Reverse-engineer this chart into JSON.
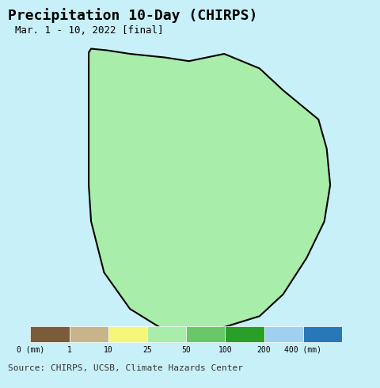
{
  "title": "Precipitation 10-Day (CHIRPS)",
  "subtitle": "Mar. 1 - 10, 2022 [final]",
  "source_text": "Source: CHIRPS, UCSB, Climate Hazards Center",
  "background_color": "#c8f0f8",
  "legend_colors": [
    "#7a5c3a",
    "#c8b48a",
    "#f5f57a",
    "#a8edaa",
    "#68c868",
    "#28a028",
    "#a0d0f0",
    "#2878b8"
  ],
  "legend_labels": [
    "0 (mm)",
    "1",
    "10",
    "25",
    "50",
    "100",
    "200",
    "400 (mm)"
  ],
  "title_fontsize": 13,
  "subtitle_fontsize": 9,
  "source_fontsize": 8,
  "map_extent": [
    79.5,
    82.0,
    5.8,
    9.9
  ],
  "figsize": [
    4.8,
    4.9
  ],
  "dpi": 100,
  "colorbar_bounds": [
    0,
    1,
    10,
    25,
    50,
    100,
    200,
    400
  ],
  "precipitation_colors": {
    "0_1": "#7a5c3a",
    "1_10": "#c8b48a",
    "10_25": "#f5f57a",
    "25_50": "#a8edaa",
    "50_100": "#68c868",
    "100_200": "#28a028",
    "200_400": "#a0d0f0",
    "400plus": "#2878b8"
  },
  "sea_color": "#c8f0f8",
  "country_edge_color": "#000000",
  "district_edge_color": "#6060a0",
  "country_edge_width": 1.5,
  "district_edge_width": 0.5
}
